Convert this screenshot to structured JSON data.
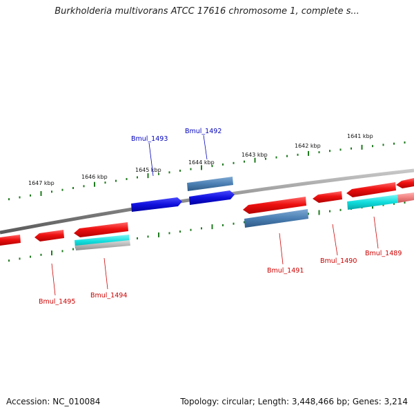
{
  "title": "Burkholderia multivorans ATCC 17616 chromosome 1, complete s...",
  "accession": "Accession: NC_010084",
  "topology": "Topology: circular; Length: 3,448,466 bp; Genes: 3,214",
  "colors": {
    "backbone": "#8c8c8c",
    "tick": "#1e7a1e",
    "cds_red": "#ee1111",
    "cds_blue": "#1010dd",
    "cds_steel": "#4b7fb3",
    "cds_cyan": "#11dddd",
    "cds_grey": "#b5b5b5",
    "cds_pink": "#f08080",
    "label_red": "#cc0000",
    "label_blue": "#0000bb"
  },
  "kbp_labels": [
    "1647 kbp",
    "1646 kbp",
    "1645 kbp",
    "1644 kbp",
    "1643 kbp",
    "1642 kbp",
    "1641 kbp"
  ],
  "gene_labels": [
    {
      "name": "Bmul_1493",
      "color": "blue"
    },
    {
      "name": "Bmul_1492",
      "color": "blue"
    },
    {
      "name": "Bmul_1495",
      "color": "red"
    },
    {
      "name": "Bmul_1494",
      "color": "red"
    },
    {
      "name": "Bmul_1491",
      "color": "red"
    },
    {
      "name": "Bmul_1490",
      "color": "red"
    },
    {
      "name": "Bmul_1489",
      "color": "red"
    }
  ]
}
